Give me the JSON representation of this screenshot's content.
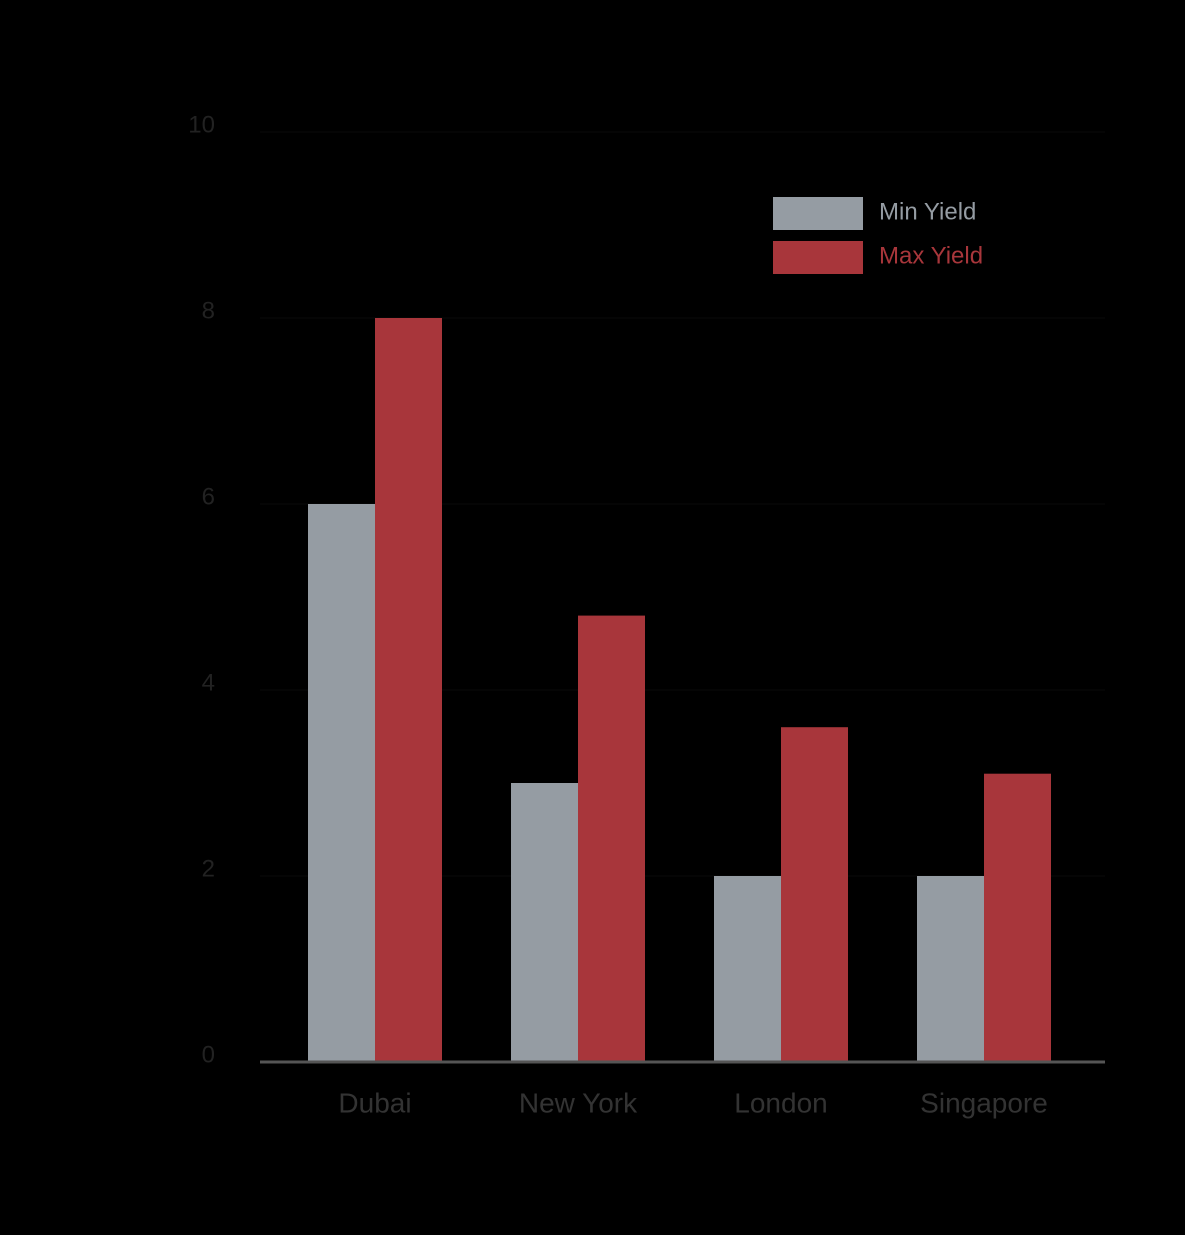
{
  "chart_data": {
    "type": "bar",
    "categories": [
      "Dubai",
      "New York",
      "London",
      "Singapore"
    ],
    "series": [
      {
        "name": "Min Yield",
        "color": "#959ca3",
        "values": [
          6,
          3,
          2,
          2
        ]
      },
      {
        "name": "Max Yield",
        "color": "#a8363b",
        "values": [
          8,
          4.8,
          3.6,
          3.1
        ]
      }
    ],
    "ylim": [
      0,
      10
    ],
    "yticks": [
      0,
      2,
      4,
      6,
      8,
      10
    ],
    "grid": true,
    "legend": "top-right"
  }
}
